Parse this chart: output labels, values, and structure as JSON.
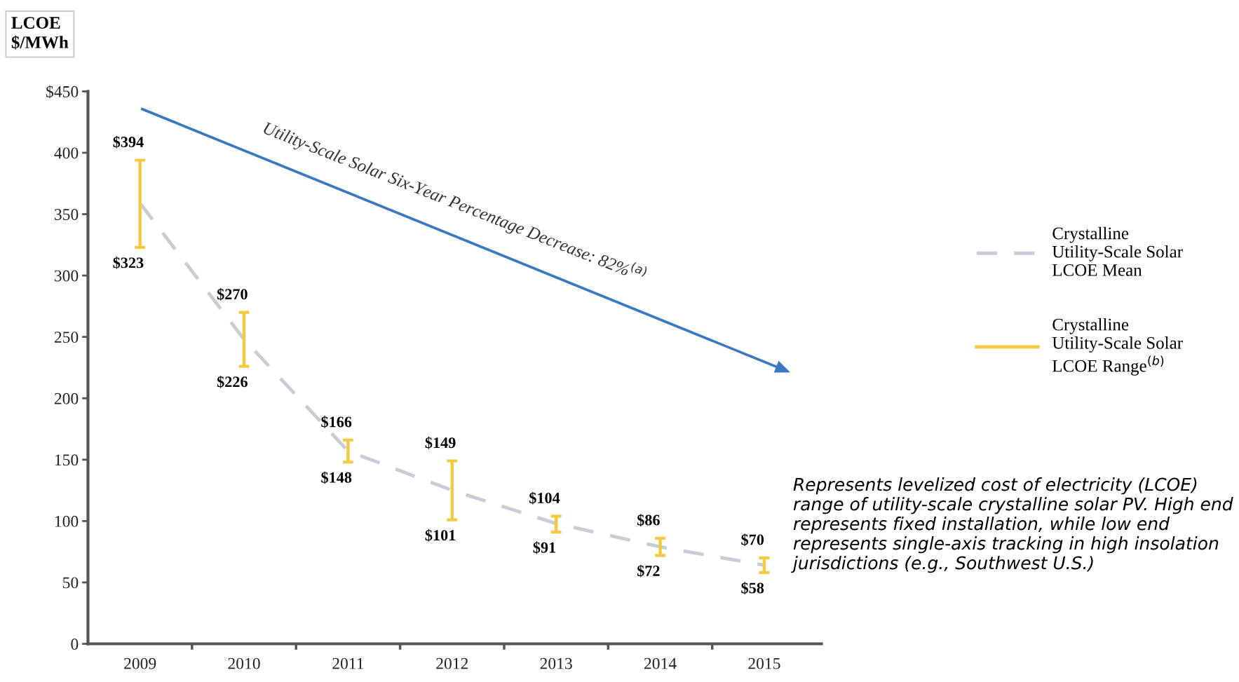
{
  "chart_data": {
    "type": "line",
    "ylabel": "LCOE\n$/MWh",
    "categories": [
      "2009",
      "2010",
      "2011",
      "2012",
      "2013",
      "2014",
      "2015"
    ],
    "series": [
      {
        "name": "Crystalline\nUtility-Scale Solar\nLCOE Mean",
        "color": "#c8ccd4",
        "line_style": "dashed",
        "values": [
          359,
          248,
          157,
          125,
          98,
          79,
          64
        ]
      },
      {
        "name": "Crystalline\nUtility-Scale Solar\nLCOE Range$^{(b)}$",
        "type": "bar",
        "color": "#f5c842",
        "base": [
          323,
          226,
          148,
          101,
          91,
          72,
          58
        ],
        "values": [
          71,
          44,
          18,
          48,
          13,
          14,
          12
        ]
      }
    ],
    "ylim": [
      0,
      450
    ],
    "yticks": [
      0,
      50,
      100,
      150,
      200,
      250,
      300,
      350,
      400,
      {
        "value": 450,
        "label": "$450"
      }
    ],
    "grid": false,
    "legend": "right",
    "marker": "none",
    "annotations": [
      {
        "text": "$394",
        "x": "2009",
        "y": 394
      },
      {
        "text": "$323",
        "x": "2009",
        "y": 323
      },
      {
        "text": "$270",
        "x": "2010",
        "y": 270
      },
      {
        "text": "$226",
        "x": "2010",
        "y": 226
      },
      {
        "text": "$166",
        "x": "2011",
        "y": 166
      },
      {
        "text": "$148",
        "x": "2011",
        "y": 148
      },
      {
        "text": "$149",
        "x": "2012",
        "y": 149
      },
      {
        "text": "$101",
        "x": "2012",
        "y": 101
      },
      {
        "text": "$104",
        "x": "2013",
        "y": 104
      },
      {
        "text": "$91",
        "x": "2013",
        "y": 91
      },
      {
        "text": "$86",
        "x": "2014",
        "y": 86
      },
      {
        "text": "$72",
        "x": "2014",
        "y": 72
      },
      {
        "text": "$70",
        "x": "2015",
        "y": 70
      },
      {
        "text": "$58",
        "x": "2015",
        "y": 58
      },
      "Utility-Scale Solar Six-Year Percentage Decrease: 82%$^{(a)}$",
      "Represents levelized cost of electricity (LCOE) range of utility-scale crystalline solar PV. High end represents fixed installation, while low end represents single-axis tracking in high insolation jurisdictions (e.g., Southwest U.S.)"
    ]
  }
}
